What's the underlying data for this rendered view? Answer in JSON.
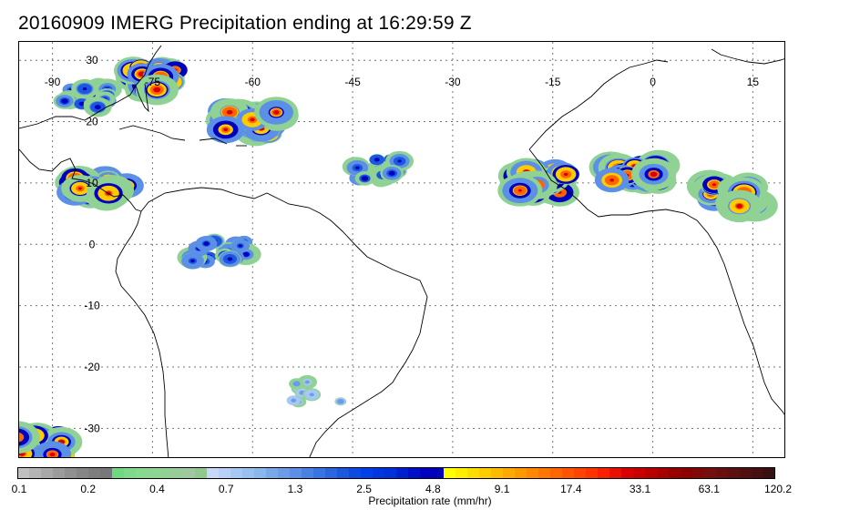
{
  "title": "20160909 IMERG Precipitation ending at 16:29:59 Z",
  "map": {
    "longitude_labels": [
      "-90",
      "-75",
      "-60",
      "-45",
      "-30",
      "-15",
      "0",
      "15"
    ],
    "latitude_labels": [
      "30",
      "20",
      "10",
      "0",
      "-10",
      "-20",
      "-30"
    ],
    "lon_range": [
      -95,
      20
    ],
    "lat_range": [
      -35,
      33
    ],
    "gridlines": "dotted",
    "land_fill": "none",
    "coastline_color": "#000000"
  },
  "colorbar": {
    "caption": "Precipitation rate (mm/hr)",
    "tick_labels": [
      "0.1",
      "0.2",
      "0.4",
      "0.7",
      "1.3",
      "2.5",
      "4.8",
      "9.1",
      "17.4",
      "33.1",
      "63.1",
      "120.2"
    ],
    "colors": [
      "#c0c0c0",
      "#b4b4b4",
      "#a8a8a8",
      "#9c9c9c",
      "#909090",
      "#868686",
      "#7e7e7e",
      "#787878",
      "#70d880",
      "#7ed98a",
      "#86d98e",
      "#8cd892",
      "#90d294",
      "#98cc98",
      "#a0c8a0",
      "#90c890",
      "#c8d8f8",
      "#b8d0f8",
      "#a8c8f4",
      "#98c0f0",
      "#88b8ec",
      "#78aaea",
      "#6a9ce8",
      "#5c90e6",
      "#4a82e4",
      "#3a74e2",
      "#2a66e0",
      "#1c58de",
      "#0c4ae0",
      "#0040e8",
      "#0036e0",
      "#0030d8",
      "#0020d0",
      "#0010c8",
      "#0000c0",
      "#0000b8",
      "#ffff00",
      "#ffee00",
      "#ffdd00",
      "#ffcc00",
      "#ffbb00",
      "#ffaa00",
      "#ff9900",
      "#ff8800",
      "#ff7700",
      "#ff6600",
      "#ff5500",
      "#ff4400",
      "#ff3300",
      "#f82000",
      "#e81000",
      "#d80000",
      "#c80000",
      "#b80000",
      "#a80000",
      "#980000",
      "#8c0000",
      "#800808",
      "#741010",
      "#681010",
      "#5c1010",
      "#501010",
      "#441010",
      "#381010"
    ]
  },
  "precip_cells": [
    {
      "region": "caribbean-north",
      "lon": -74,
      "lat": 27,
      "intensity": "heavy"
    },
    {
      "region": "gulf-east",
      "lon": -85,
      "lat": 24,
      "intensity": "moderate"
    },
    {
      "region": "atlantic-west",
      "lon": -60,
      "lat": 20,
      "intensity": "heavy"
    },
    {
      "region": "central-america",
      "lon": -83,
      "lat": 9,
      "intensity": "heavy"
    },
    {
      "region": "itcz-atlantic",
      "lon": -42,
      "lat": 12,
      "intensity": "moderate"
    },
    {
      "region": "itcz-africa-west",
      "lon": -17,
      "lat": 10,
      "intensity": "heavy"
    },
    {
      "region": "west-africa",
      "lon": -3,
      "lat": 11,
      "intensity": "heavy"
    },
    {
      "region": "central-africa",
      "lon": 12,
      "lat": 8,
      "intensity": "heavy"
    },
    {
      "region": "amazon",
      "lon": -65,
      "lat": -1,
      "intensity": "moderate"
    },
    {
      "region": "south-pacific",
      "lon": -92,
      "lat": -33,
      "intensity": "heavy"
    },
    {
      "region": "south-atlantic",
      "lon": -50,
      "lat": -24,
      "intensity": "light"
    }
  ]
}
